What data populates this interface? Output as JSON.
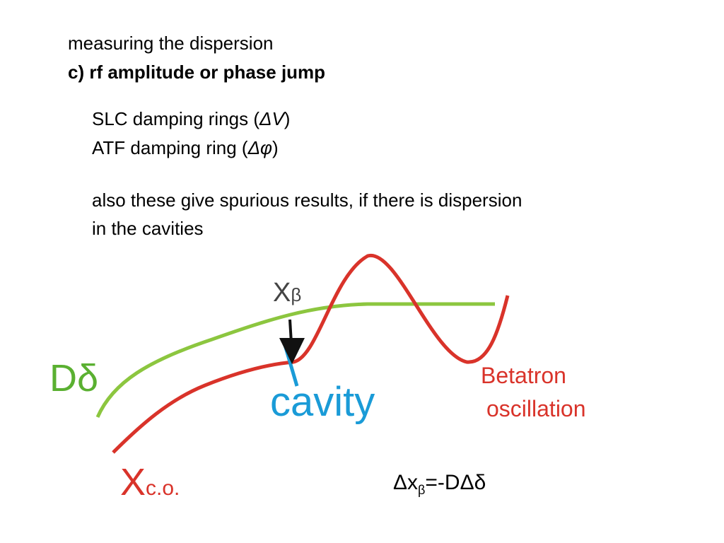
{
  "header": {
    "line1": "measuring the dispersion",
    "line2": "c) rf amplitude or phase jump"
  },
  "methods": [
    {
      "prefix": "SLC damping rings (",
      "symbol": "ΔV",
      "suffix": ")"
    },
    {
      "prefix": "ATF damping ring (",
      "symbol": "Δφ",
      "suffix": ")"
    }
  ],
  "note": [
    "also these give spurious results, if there is dispersion",
    "in the cavities"
  ],
  "diagram": {
    "x_beta": {
      "main": "X",
      "sub": "β"
    },
    "d_delta": "Dδ",
    "cavity": "cavity",
    "betatron": [
      "Betatron",
      "oscillation"
    ],
    "x_co": {
      "main": "X",
      "sub": "c.o."
    }
  },
  "formula": {
    "a": "Δx",
    "sub": "β",
    "b": "=-DΔδ"
  }
}
